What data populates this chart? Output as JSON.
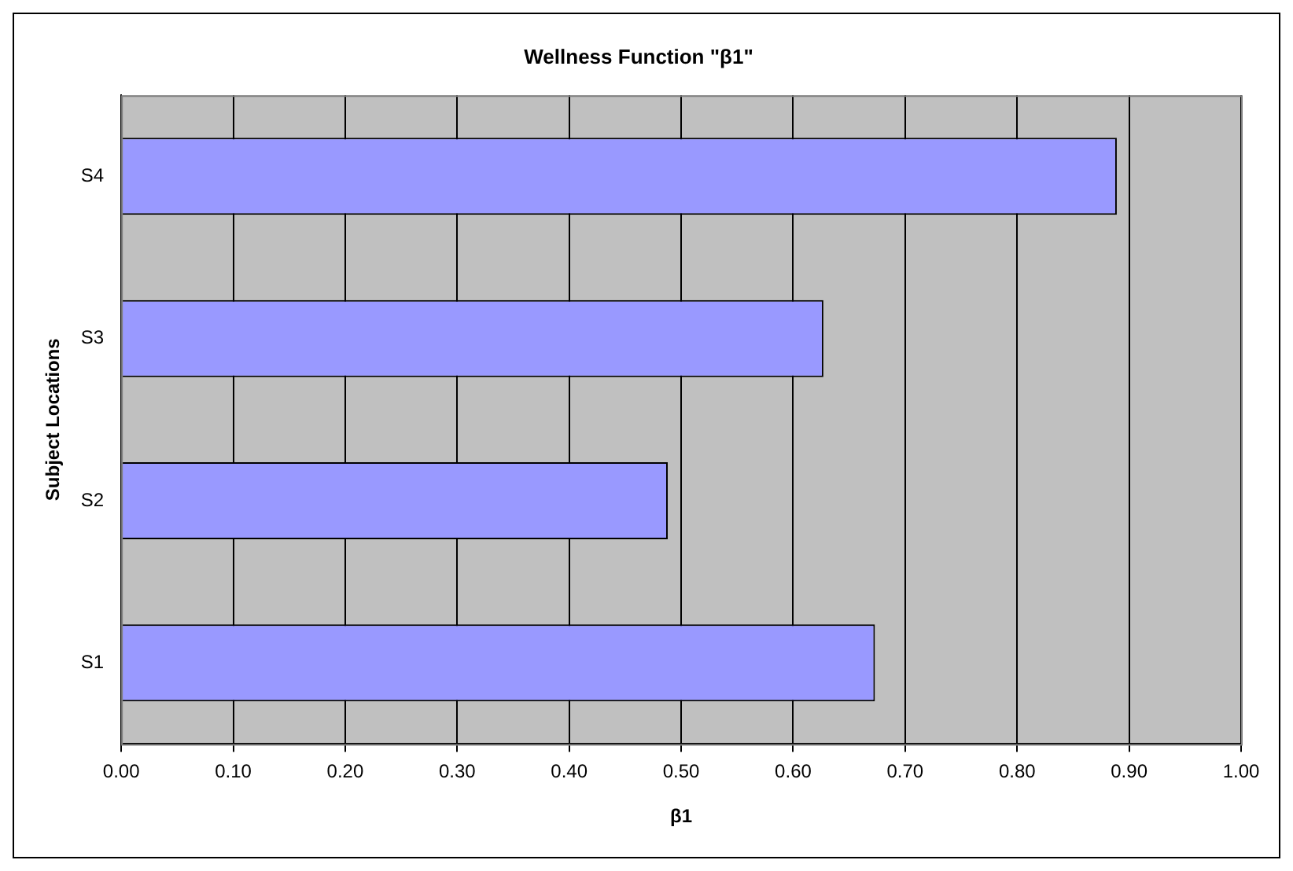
{
  "chart_data": {
    "type": "bar",
    "orientation": "horizontal",
    "title": "Wellness Function \"β1\"",
    "xlabel": "β1",
    "ylabel": "Subject Locations",
    "categories": [
      "S4",
      "S3",
      "S2",
      "S1"
    ],
    "values": [
      0.889,
      0.627,
      0.488,
      0.673
    ],
    "color": "#9999ff",
    "xlim": [
      0,
      1
    ],
    "xticks": [
      {
        "value": 0,
        "label": "0.00"
      },
      {
        "value": 0.1,
        "label": "0.10"
      },
      {
        "value": 0.2,
        "label": "0.20"
      },
      {
        "value": 0.3,
        "label": "0.30"
      },
      {
        "value": 0.4,
        "label": "0.40"
      },
      {
        "value": 0.5,
        "label": "0.50"
      },
      {
        "value": 0.6,
        "label": "0.60"
      },
      {
        "value": 0.7,
        "label": "0.70"
      },
      {
        "value": 0.8,
        "label": "0.80"
      },
      {
        "value": 0.9,
        "label": "0.90"
      },
      {
        "value": 1,
        "label": "1.00"
      }
    ],
    "grid": "x",
    "legend": false
  }
}
